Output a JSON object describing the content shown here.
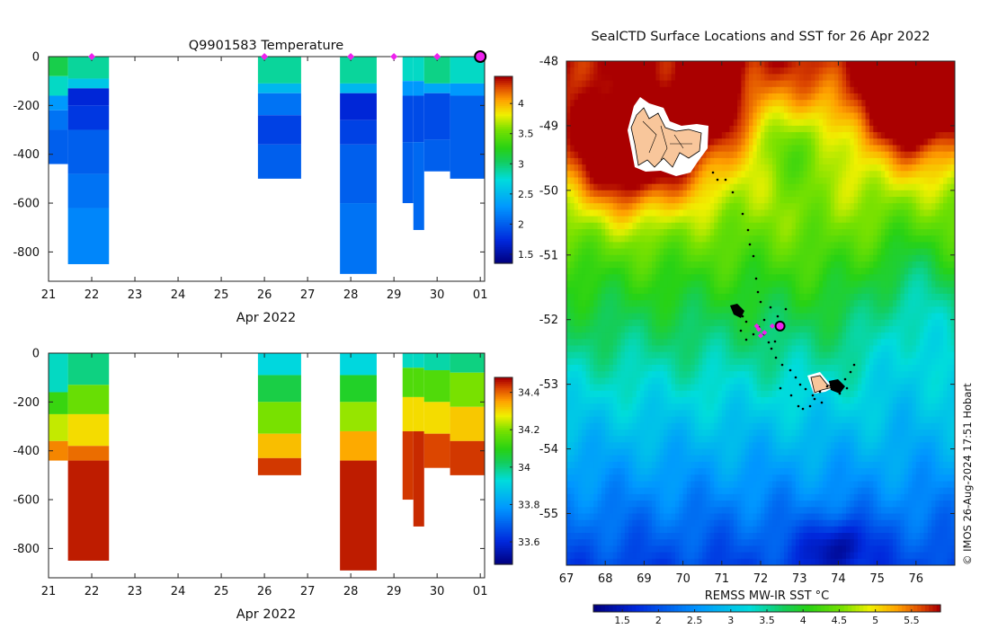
{
  "chart_data": [
    {
      "type": "heatmap",
      "title": "Q9901583  Temperature",
      "xlabel": "Apr 2022",
      "ylabel": "",
      "x_ticks": [
        "21",
        "22",
        "23",
        "24",
        "25",
        "26",
        "27",
        "28",
        "29",
        "30",
        "01"
      ],
      "y_ticks": [
        "0",
        "-200",
        "-400",
        "-600",
        "-800"
      ],
      "xlim": [
        21,
        31.1
      ],
      "ylim": [
        -920,
        0
      ],
      "colorbar_ticks": [
        "1.5",
        "2",
        "2.5",
        "3",
        "3.5",
        "4"
      ],
      "colorbar_range": [
        1.35,
        4.45
      ],
      "surface_markers_day": [
        22,
        26,
        28,
        29,
        30
      ],
      "current_marker_day": 31,
      "profiles": [
        {
          "x0": 21.0,
          "x1": 21.45,
          "max_depth": 440,
          "layers": [
            [
              0,
              80,
              3.1
            ],
            [
              80,
              160,
              2.8
            ],
            [
              160,
              220,
              2.3
            ],
            [
              220,
              300,
              2.1
            ],
            [
              300,
              440,
              2.0
            ]
          ]
        },
        {
          "x0": 21.45,
          "x1": 22.4,
          "max_depth": 850,
          "layers": [
            [
              0,
              90,
              2.9
            ],
            [
              90,
              130,
              2.6
            ],
            [
              130,
              200,
              1.7
            ],
            [
              200,
              300,
              1.8
            ],
            [
              300,
              480,
              2.0
            ],
            [
              480,
              620,
              2.1
            ],
            [
              620,
              850,
              2.2
            ]
          ]
        },
        {
          "x0": 25.85,
          "x1": 26.85,
          "max_depth": 500,
          "layers": [
            [
              0,
              110,
              2.9
            ],
            [
              110,
              150,
              2.5
            ],
            [
              150,
              240,
              2.1
            ],
            [
              240,
              360,
              1.85
            ],
            [
              360,
              500,
              2.0
            ]
          ]
        },
        {
          "x0": 27.75,
          "x1": 28.6,
          "max_depth": 890,
          "layers": [
            [
              0,
              110,
              2.9
            ],
            [
              110,
              150,
              2.5
            ],
            [
              150,
              260,
              1.7
            ],
            [
              260,
              360,
              1.85
            ],
            [
              360,
              600,
              2.0
            ],
            [
              600,
              890,
              2.1
            ]
          ]
        },
        {
          "x0": 29.2,
          "x1": 29.45,
          "max_depth": 600,
          "layers": [
            [
              0,
              100,
              2.8
            ],
            [
              100,
              160,
              2.3
            ],
            [
              160,
              350,
              1.9
            ],
            [
              350,
              600,
              2.0
            ]
          ]
        },
        {
          "x0": 29.45,
          "x1": 29.7,
          "max_depth": 710,
          "layers": [
            [
              0,
              100,
              2.8
            ],
            [
              100,
              160,
              2.3
            ],
            [
              160,
              350,
              1.9
            ],
            [
              350,
              710,
              2.05
            ]
          ]
        },
        {
          "x0": 29.7,
          "x1": 30.3,
          "max_depth": 470,
          "layers": [
            [
              0,
              110,
              2.95
            ],
            [
              110,
              150,
              2.4
            ],
            [
              150,
              340,
              1.9
            ],
            [
              340,
              470,
              2.0
            ]
          ]
        },
        {
          "x0": 30.3,
          "x1": 31.1,
          "max_depth": 500,
          "layers": [
            [
              0,
              110,
              2.8
            ],
            [
              110,
              160,
              2.3
            ],
            [
              160,
              500,
              2.0
            ]
          ]
        }
      ]
    },
    {
      "type": "heatmap",
      "title": "",
      "xlabel": "Apr 2022",
      "ylabel": "",
      "x_ticks": [
        "21",
        "22",
        "23",
        "24",
        "25",
        "26",
        "27",
        "28",
        "29",
        "30",
        "01"
      ],
      "y_ticks": [
        "0",
        "-200",
        "-400",
        "-600",
        "-800"
      ],
      "xlim": [
        21,
        31.1
      ],
      "ylim": [
        -920,
        0
      ],
      "colorbar_ticks": [
        "33.6",
        "33.8",
        "34",
        "34.2",
        "34.4"
      ],
      "colorbar_range": [
        33.48,
        34.48
      ],
      "profiles": [
        {
          "x0": 21.0,
          "x1": 21.45,
          "max_depth": 440,
          "layers": [
            [
              0,
              160,
              33.95
            ],
            [
              160,
              250,
              34.12
            ],
            [
              250,
              360,
              34.25
            ],
            [
              360,
              440,
              34.38
            ]
          ]
        },
        {
          "x0": 21.45,
          "x1": 22.4,
          "max_depth": 850,
          "layers": [
            [
              0,
              130,
              34.0
            ],
            [
              130,
              250,
              34.18
            ],
            [
              250,
              380,
              34.3
            ],
            [
              380,
              440,
              34.4
            ],
            [
              440,
              850,
              34.46
            ]
          ]
        },
        {
          "x0": 25.85,
          "x1": 26.85,
          "max_depth": 500,
          "layers": [
            [
              0,
              90,
              33.92
            ],
            [
              90,
              200,
              34.05
            ],
            [
              200,
              330,
              34.2
            ],
            [
              330,
              430,
              34.33
            ],
            [
              430,
              500,
              34.44
            ]
          ]
        },
        {
          "x0": 27.75,
          "x1": 28.6,
          "max_depth": 890,
          "layers": [
            [
              0,
              90,
              33.92
            ],
            [
              90,
              200,
              34.08
            ],
            [
              200,
              320,
              34.22
            ],
            [
              320,
              440,
              34.35
            ],
            [
              440,
              890,
              34.46
            ]
          ]
        },
        {
          "x0": 29.2,
          "x1": 29.45,
          "max_depth": 600,
          "layers": [
            [
              0,
              60,
              33.95
            ],
            [
              60,
              180,
              34.15
            ],
            [
              180,
              320,
              34.3
            ],
            [
              320,
              600,
              34.44
            ]
          ]
        },
        {
          "x0": 29.45,
          "x1": 29.7,
          "max_depth": 710,
          "layers": [
            [
              0,
              60,
              33.95
            ],
            [
              60,
              180,
              34.15
            ],
            [
              180,
              320,
              34.3
            ],
            [
              320,
              710,
              34.45
            ]
          ]
        },
        {
          "x0": 29.7,
          "x1": 30.3,
          "max_depth": 470,
          "layers": [
            [
              0,
              70,
              33.97
            ],
            [
              70,
              200,
              34.15
            ],
            [
              200,
              330,
              34.3
            ],
            [
              330,
              470,
              34.43
            ]
          ]
        },
        {
          "x0": 30.3,
          "x1": 31.1,
          "max_depth": 500,
          "layers": [
            [
              0,
              80,
              34.0
            ],
            [
              80,
              220,
              34.2
            ],
            [
              220,
              360,
              34.32
            ],
            [
              360,
              500,
              34.44
            ]
          ]
        }
      ]
    },
    {
      "type": "heatmap",
      "title": "SealCTD Surface Locations and SST for 26 Apr 2022",
      "xlabel": "REMSS MW-IR SST °C",
      "ylabel": "",
      "x_ticks": [
        "67",
        "68",
        "69",
        "70",
        "71",
        "72",
        "73",
        "74",
        "75",
        "76"
      ],
      "y_ticks": [
        "-48",
        "-49",
        "-50",
        "-51",
        "-52",
        "-53",
        "-54",
        "-55"
      ],
      "xlim": [
        67,
        77
      ],
      "ylim": [
        -55.8,
        -48
      ],
      "colorbar_ticks": [
        "1.5",
        "2",
        "2.5",
        "3",
        "3.5",
        "4",
        "4.5",
        "5",
        "5.5"
      ],
      "colorbar_range": [
        1.1,
        5.9
      ],
      "credit": "© IMOS 26-Aug-2024 17:51 Hobart",
      "current_position": [
        72.5,
        -52.1
      ],
      "surface_locations": [
        [
          71.9,
          -52.1
        ],
        [
          72.1,
          -52.2
        ],
        [
          72.3,
          -52.1
        ],
        [
          72.0,
          -52.25
        ],
        [
          71.95,
          -52.15
        ]
      ]
    }
  ]
}
